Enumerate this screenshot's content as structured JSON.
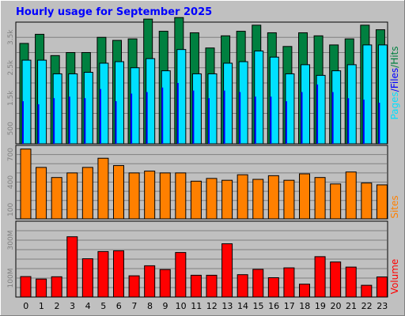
{
  "chart_data": [
    {
      "type": "bar",
      "panel": "hits-files-pages",
      "title": "Hourly usage for September 2025",
      "categories": [
        "0",
        "1",
        "2",
        "3",
        "4",
        "5",
        "6",
        "7",
        "8",
        "9",
        "10",
        "11",
        "12",
        "13",
        "14",
        "15",
        "16",
        "17",
        "18",
        "19",
        "20",
        "21",
        "22",
        "23"
      ],
      "ylabel_parts": [
        "Pages",
        "/",
        "Files",
        "/",
        "Hits"
      ],
      "yticks": [
        "500",
        "1.5k",
        "2.5k",
        "3.5k"
      ],
      "ylim": [
        0,
        4000
      ],
      "series": [
        {
          "name": "Hits",
          "values": [
            3300,
            3600,
            2900,
            3000,
            3000,
            3500,
            3400,
            3450,
            4100,
            3700,
            4150,
            3650,
            3150,
            3550,
            3700,
            3900,
            3650,
            3200,
            3650,
            3550,
            3250,
            3450,
            3900,
            3750
          ]
        },
        {
          "name": "Files",
          "values": [
            2750,
            2750,
            2300,
            2300,
            2350,
            2650,
            2700,
            2500,
            2800,
            2400,
            3100,
            2300,
            2300,
            2650,
            2700,
            3050,
            2850,
            2300,
            2600,
            2250,
            2400,
            2600,
            3250,
            3250
          ]
        },
        {
          "name": "Pages",
          "values": [
            1400,
            1300,
            1500,
            1550,
            1500,
            1800,
            1400,
            1650,
            1700,
            1850,
            2000,
            1750,
            1500,
            1750,
            1700,
            1550,
            1550,
            1400,
            1700,
            1950,
            1700,
            1500,
            1450,
            1350
          ]
        }
      ],
      "colors": {
        "Hits": "#008040",
        "Files": "#00e0ff",
        "Pages": "#0000ff"
      }
    },
    {
      "type": "bar",
      "panel": "sites",
      "categories": [
        "0",
        "1",
        "2",
        "3",
        "4",
        "5",
        "6",
        "7",
        "8",
        "9",
        "10",
        "11",
        "12",
        "13",
        "14",
        "15",
        "16",
        "17",
        "18",
        "19",
        "20",
        "21",
        "22",
        "23"
      ],
      "ylabel": "Sites",
      "yticks": [
        "100",
        "400",
        "700"
      ],
      "ylim": [
        0,
        800
      ],
      "series": [
        {
          "name": "Sites",
          "values": [
            760,
            560,
            450,
            500,
            560,
            660,
            580,
            500,
            520,
            500,
            500,
            410,
            440,
            420,
            480,
            430,
            470,
            420,
            490,
            450,
            380,
            510,
            390,
            370
          ]
        }
      ],
      "colors": {
        "Sites": "#ff8000"
      }
    },
    {
      "type": "bar",
      "panel": "volume",
      "categories": [
        "0",
        "1",
        "2",
        "3",
        "4",
        "5",
        "6",
        "7",
        "8",
        "9",
        "10",
        "11",
        "12",
        "13",
        "14",
        "15",
        "16",
        "17",
        "18",
        "19",
        "20",
        "21",
        "22",
        "23"
      ],
      "ylabel": "Volume",
      "yticks": [
        "100M",
        "300M"
      ],
      "ylim": [
        0,
        400
      ],
      "series": [
        {
          "name": "Volume",
          "values": [
            108,
            95,
            107,
            318,
            202,
            240,
            244,
            112,
            165,
            145,
            235,
            115,
            115,
            281,
            118,
            146,
            102,
            154,
            68,
            213,
            185,
            158,
            62,
            106
          ]
        }
      ],
      "colors": {
        "Volume": "#ff0000"
      }
    }
  ]
}
